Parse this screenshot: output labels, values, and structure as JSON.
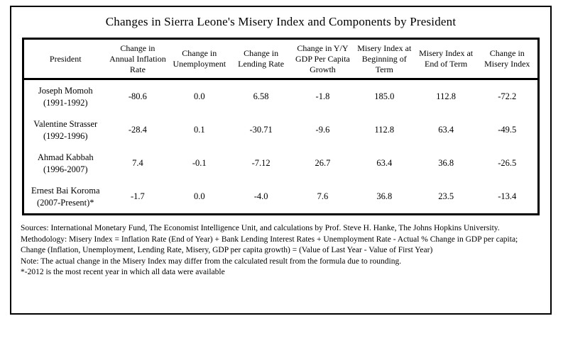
{
  "title": "Changes in Sierra Leone's Misery Index and Components by President",
  "table": {
    "headers": [
      "President",
      "Change in Annual Inflation Rate",
      "Change in Unemployment",
      "Change in Lending Rate",
      "Change in Y/Y GDP Per Capita Growth",
      "Misery Index at Beginning of Term",
      "Misery Index at End of Term",
      "Change in Misery Index"
    ],
    "rows": [
      {
        "president": "Joseph Momoh",
        "term": "(1991-1992)",
        "values": [
          "-80.6",
          "0.0",
          "6.58",
          "-1.8",
          "185.0",
          "112.8",
          "-72.2"
        ]
      },
      {
        "president": "Valentine Strasser",
        "term": "(1992-1996)",
        "values": [
          "-28.4",
          "0.1",
          "-30.71",
          "-9.6",
          "112.8",
          "63.4",
          "-49.5"
        ]
      },
      {
        "president": "Ahmad Kabbah",
        "term": "(1996-2007)",
        "values": [
          "7.4",
          "-0.1",
          "-7.12",
          "26.7",
          "63.4",
          "36.8",
          "-26.5"
        ]
      },
      {
        "president": "Ernest Bai Koroma",
        "term": "(2007-Present)*",
        "values": [
          "-1.7",
          "0.0",
          "-4.0",
          "7.6",
          "36.8",
          "23.5",
          "-13.4"
        ]
      }
    ]
  },
  "notes": {
    "sources": "Sources: International Monetary Fund, The Economist Intelligence Unit, and calculations by Prof. Steve H. Hanke, The Johns Hopkins University.",
    "methodology_line1": "Methodology:  Misery Index = Inflation Rate (End of Year) + Bank Lending Interest Rates + Unemployment Rate - Actual % Change in GDP per capita;",
    "methodology_line2": "Change (Inflation, Unemployment, Lending Rate, Misery, GDP per capita growth) = (Value of Last Year - Value of First Year)",
    "rounding": "Note: The actual change in the Misery Index may differ from the calculated result from the formula due to rounding.",
    "asterisk": "*-2012 is the most recent year in which all data were available"
  }
}
